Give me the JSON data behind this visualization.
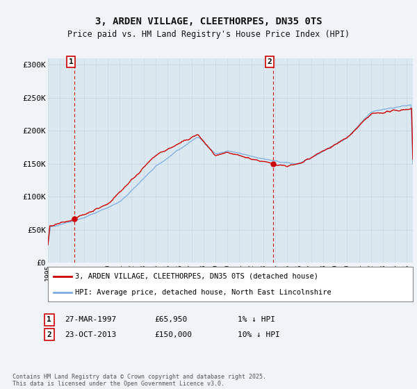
{
  "title1": "3, ARDEN VILLAGE, CLEETHORPES, DN35 0TS",
  "title2": "Price paid vs. HM Land Registry's House Price Index (HPI)",
  "ylim": [
    0,
    310000
  ],
  "yticks": [
    0,
    50000,
    100000,
    150000,
    200000,
    250000,
    300000
  ],
  "ytick_labels": [
    "£0",
    "£50K",
    "£100K",
    "£150K",
    "£200K",
    "£250K",
    "£300K"
  ],
  "sale1_date": 1997.23,
  "sale1_price": 65950,
  "sale2_date": 2013.81,
  "sale2_price": 150000,
  "legend_red": "3, ARDEN VILLAGE, CLEETHORPES, DN35 0TS (detached house)",
  "legend_blue": "HPI: Average price, detached house, North East Lincolnshire",
  "footer": "Contains HM Land Registry data © Crown copyright and database right 2025.\nThis data is licensed under the Open Government Licence v3.0.",
  "line_color_red": "#cc0000",
  "line_color_blue": "#7aade0",
  "background_color": "#f0f4f8",
  "plot_bg_color": "#dce8f0",
  "grid_color": "#c8d8e8",
  "xmin": 1995,
  "xmax": 2025.5,
  "sale1_text_date": "27-MAR-1997",
  "sale1_text_price": "£65,950",
  "sale1_text_hpi": "1% ↓ HPI",
  "sale2_text_date": "23-OCT-2013",
  "sale2_text_price": "£150,000",
  "sale2_text_hpi": "10% ↓ HPI"
}
